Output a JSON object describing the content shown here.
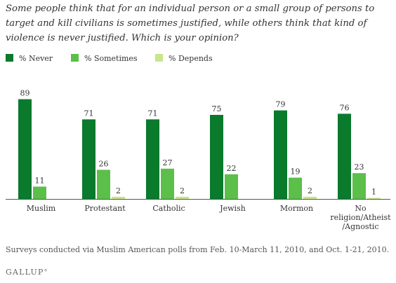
{
  "title": "Some people think that for an individual person or a small group of persons to target and kill civilians is sometimes justified, while others think that kind of violence is never justified. Which is your opinion?",
  "footnote": "Surveys conducted via Muslim American polls from Feb. 10-March 11, 2010, and Oct. 1-21, 2010.",
  "brand": "GALLUP",
  "colors": {
    "never": "#0a7a2c",
    "sometimes": "#5bbf4a",
    "depends": "#c9e68b",
    "text": "#333333"
  },
  "chart_data": {
    "type": "bar",
    "title": "Some people think that for an individual person or a small group of persons to target and kill civilians is sometimes justified, while others think that kind of violence is never justified. Which is your opinion?",
    "categories": [
      "Muslim",
      "Protestant",
      "Catholic",
      "Jewish",
      "Mormon",
      "No religion/Atheist/Agnostic"
    ],
    "category_lines": [
      [
        "Muslim"
      ],
      [
        "Protestant"
      ],
      [
        "Catholic"
      ],
      [
        "Jewish"
      ],
      [
        "Mormon"
      ],
      [
        "No",
        "religion/Atheist",
        "/Agnostic"
      ]
    ],
    "series": [
      {
        "name": "% Never",
        "values": [
          89,
          71,
          71,
          75,
          79,
          76
        ]
      },
      {
        "name": "% Sometimes",
        "values": [
          11,
          26,
          27,
          22,
          19,
          23
        ]
      },
      {
        "name": "% Depends",
        "values": [
          null,
          2,
          2,
          null,
          2,
          1
        ]
      }
    ],
    "ylim": [
      0,
      100
    ],
    "grid": false,
    "legend_position": "top-left",
    "data_labels": true
  }
}
